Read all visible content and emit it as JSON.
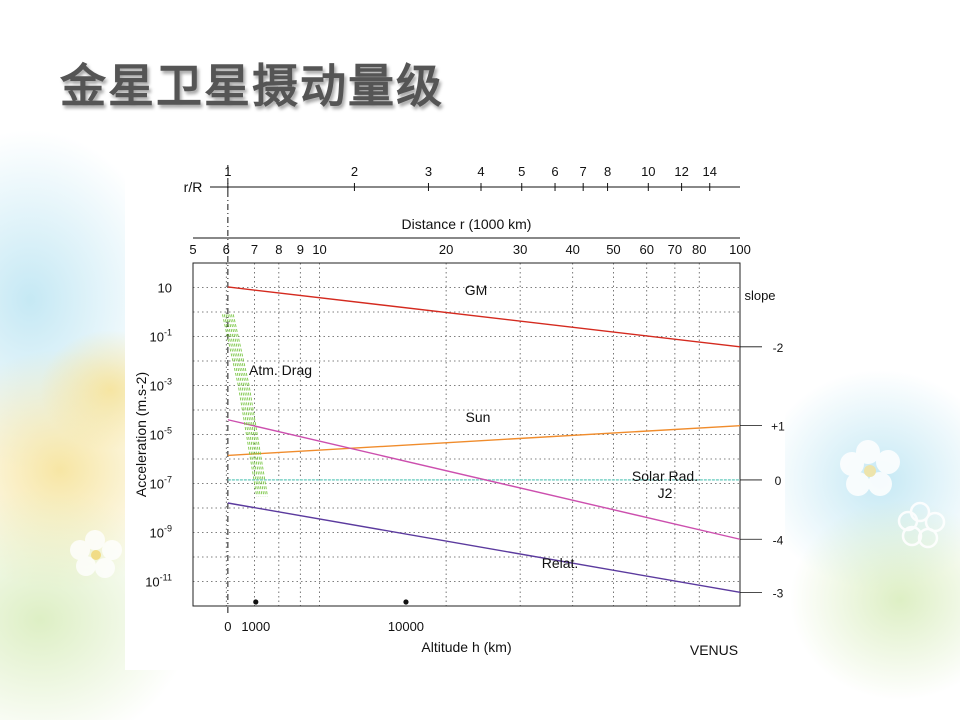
{
  "slide": {
    "title": "金星卫星摄动量级"
  },
  "colors": {
    "gm": "#d42a1f",
    "sun": "#f08c2c",
    "solar_rad": "#cc4fae",
    "relat": "#5b3a9e",
    "j2_zero": "#7dd2c8",
    "drag": "#7ec84a",
    "grid": "#555555"
  },
  "chart_data": {
    "type": "line",
    "x_scale": "log",
    "y_scale": "log",
    "xlabel": "Altitude h (km)",
    "ylabel": "Acceleration (m.s-2)",
    "corner_label": "VENUS",
    "top_axis": {
      "label": "r/R",
      "ticks": [
        "1",
        "2",
        "3",
        "4",
        "5",
        "6",
        "7",
        "8",
        "10",
        "12",
        "14"
      ]
    },
    "distance_axis": {
      "label": "Distance r (1000 km)",
      "xlim": [
        5,
        100
      ],
      "ticks": [
        "5",
        "6",
        "7",
        "8",
        "9",
        "10",
        "20",
        "30",
        "40",
        "50",
        "60",
        "70",
        "80",
        "100"
      ]
    },
    "ylim": [
      1e-12,
      100
    ],
    "y_ticks": [
      {
        "value": 10,
        "base": "10",
        "exp": ""
      },
      {
        "value": 0.1,
        "base": "10",
        "exp": "-1"
      },
      {
        "value": 0.001,
        "base": "10",
        "exp": "-3"
      },
      {
        "value": 1e-05,
        "base": "10",
        "exp": "-5"
      },
      {
        "value": 1e-07,
        "base": "10",
        "exp": "-7"
      },
      {
        "value": 1e-09,
        "base": "10",
        "exp": "-9"
      },
      {
        "value": 1e-11,
        "base": "10",
        "exp": "-11"
      }
    ],
    "altitude_ticks": [
      {
        "label": "0",
        "r_km": 6052
      },
      {
        "label": "1000",
        "r_km": 7052
      },
      {
        "label": "10000",
        "r_km": 16052
      }
    ],
    "slope_header": "slope",
    "series": [
      {
        "name": "GM",
        "color_key": "gm",
        "r": [
          6052,
          100000
        ],
        "acc": [
          10.5,
          0.038
        ],
        "slope_label": "-2"
      },
      {
        "name": "Sun",
        "color_key": "sun",
        "r": [
          6052,
          100000
        ],
        "acc": [
          1.4e-06,
          2.3e-05
        ],
        "slope_label": "+1"
      },
      {
        "name": "J2",
        "color_key": "j2_zero",
        "r": [
          6052,
          100000
        ],
        "acc": [
          1.4e-07,
          1.4e-07
        ],
        "slope_label": "0"
      },
      {
        "name": "Solar Rad.",
        "color_key": "solar_rad",
        "r": [
          6052,
          100000
        ],
        "acc": [
          4e-05,
          5.3e-10
        ],
        "slope_label": "-4"
      },
      {
        "name": "Relat.",
        "color_key": "relat",
        "r": [
          6052,
          100000
        ],
        "acc": [
          1.6e-08,
          3.6e-12
        ],
        "slope_label": "-3"
      }
    ],
    "drag": {
      "name": "Atm.  Drag",
      "r": [
        6052,
        6600,
        7300
      ],
      "acc": [
        0.8,
        0.001,
        3e-08
      ]
    },
    "series_labels": {
      "gm": "GM",
      "sun": "Sun",
      "solar_rad": "Solar Rad.",
      "j2": "J2",
      "relat": "Relat.",
      "drag": "Atm.  Drag"
    }
  }
}
